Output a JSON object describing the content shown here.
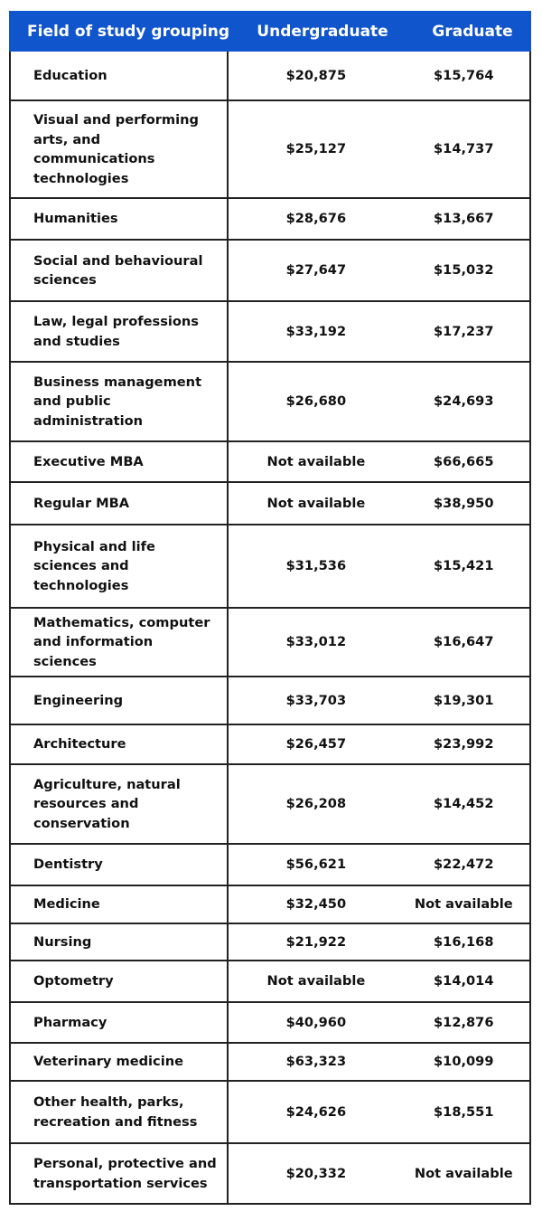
{
  "table": {
    "headers": [
      "Field of study grouping",
      "Undergraduate",
      "Graduate"
    ],
    "rows": [
      {
        "field": "Education",
        "undergraduate": "$20,875",
        "graduate": "$15,764"
      },
      {
        "field": "Visual and performing arts, and communications technologies",
        "undergraduate": "$25,127",
        "graduate": "$14,737"
      },
      {
        "field": "Humanities",
        "undergraduate": "$28,676",
        "graduate": "$13,667"
      },
      {
        "field": "Social and behavioural sciences",
        "undergraduate": "$27,647",
        "graduate": "$15,032"
      },
      {
        "field": "Law, legal professions and studies",
        "undergraduate": "$33,192",
        "graduate": "$17,237"
      },
      {
        "field": "Business management and public administration",
        "undergraduate": "$26,680",
        "graduate": "$24,693"
      },
      {
        "field": "Executive MBA",
        "undergraduate": "Not available",
        "graduate": "$66,665"
      },
      {
        "field": "Regular MBA",
        "undergraduate": "Not available",
        "graduate": "$38,950"
      },
      {
        "field": "Physical and life sciences and technologies",
        "undergraduate": "$31,536",
        "graduate": "$15,421"
      },
      {
        "field": "Mathematics, computer and information sciences",
        "undergraduate": "$33,012",
        "graduate": "$16,647"
      },
      {
        "field": "Engineering",
        "undergraduate": "$33,703",
        "graduate": "$19,301"
      },
      {
        "field": "Architecture",
        "undergraduate": "$26,457",
        "graduate": "$23,992"
      },
      {
        "field": "Agriculture, natural resources and conservation",
        "undergraduate": "$26,208",
        "graduate": "$14,452"
      },
      {
        "field": "Dentistry",
        "undergraduate": "$56,621",
        "graduate": "$22,472"
      },
      {
        "field": "Medicine",
        "undergraduate": "$32,450",
        "graduate": "Not available"
      },
      {
        "field": "Nursing",
        "undergraduate": "$21,922",
        "graduate": "$16,168"
      },
      {
        "field": "Optometry",
        "undergraduate": "Not available",
        "graduate": "$14,014"
      },
      {
        "field": "Pharmacy",
        "undergraduate": "$40,960",
        "graduate": "$12,876"
      },
      {
        "field": "Veterinary medicine",
        "undergraduate": "$63,323",
        "graduate": "$10,099"
      },
      {
        "field": "Other health, parks, recreation and fitness",
        "undergraduate": "$24,626",
        "graduate": "$18,551"
      },
      {
        "field": "Personal, protective and transportation services",
        "undergraduate": "$20,332",
        "graduate": "Not available"
      }
    ]
  },
  "colors": {
    "header_bg": "#1155cc",
    "header_text": "#ffffff",
    "border": "#222222"
  }
}
